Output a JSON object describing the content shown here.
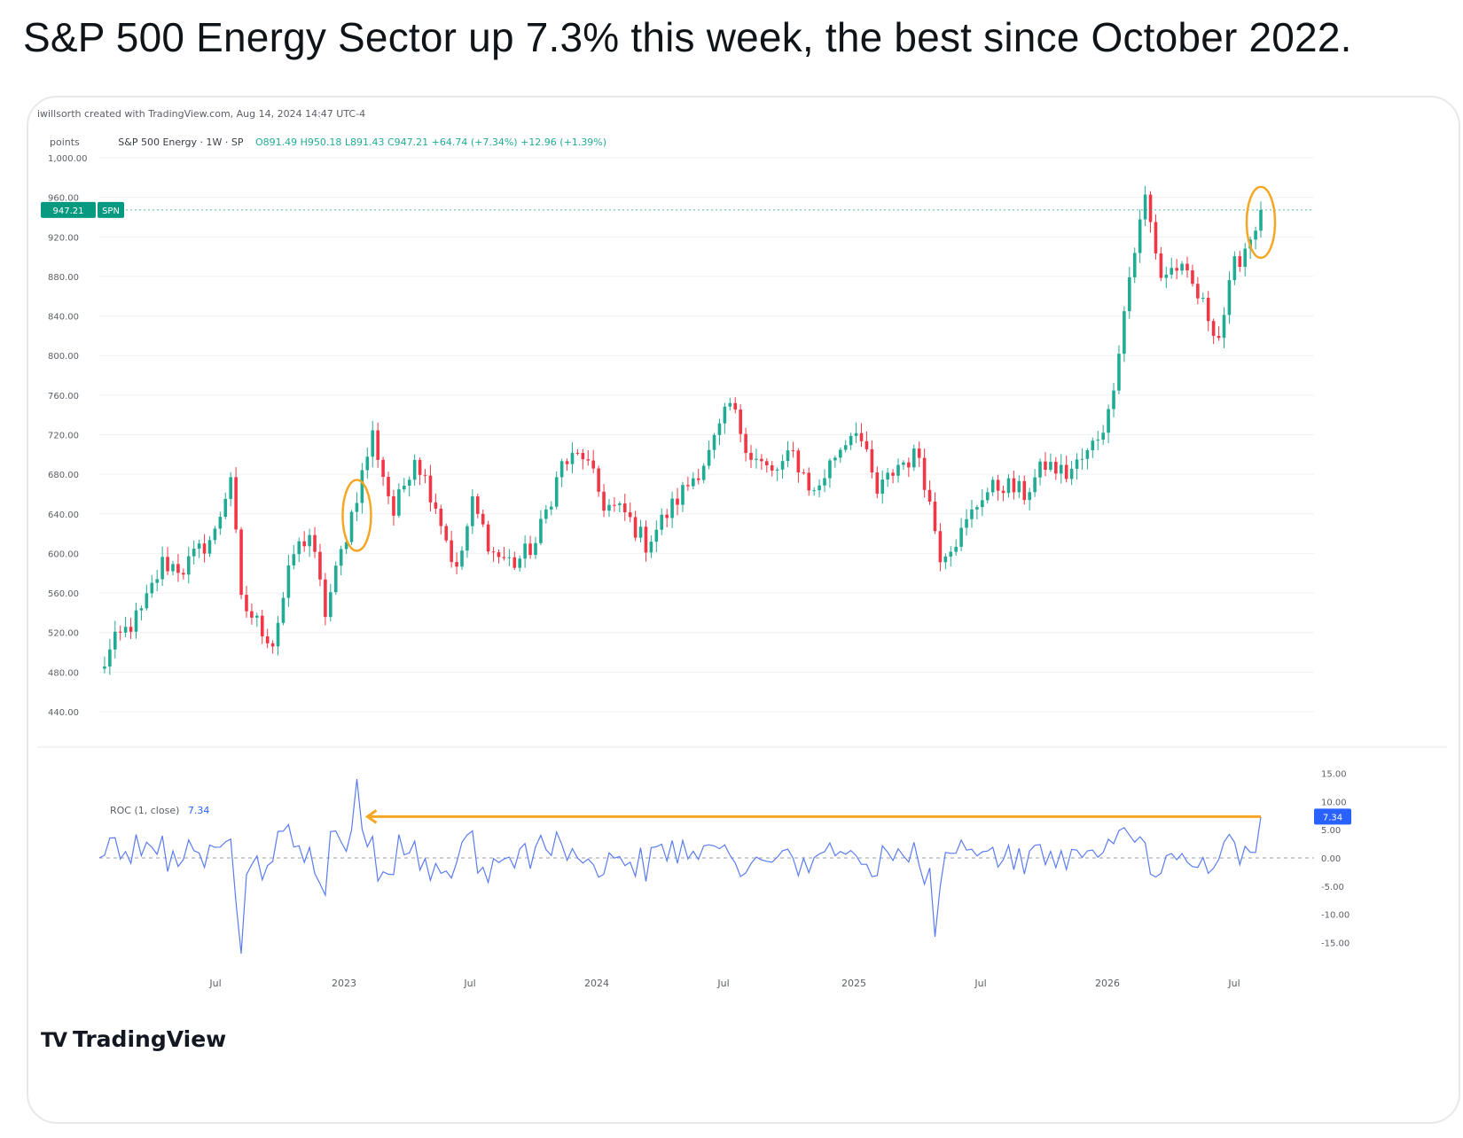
{
  "tweet": {
    "text": "S&P 500 Energy Sector up 7.3% this week, the best since October 2022."
  },
  "card": {
    "meta": "iwillsorth created with TradingView.com, Aug 14, 2024 14:47 UTC-4",
    "unit_label": "points",
    "legend_symbol": "S&P 500 Energy · 1W · SP",
    "legend_ohlc": "O891.49 H950.18 L891.43 C947.21 +64.74 (+7.34%) +12.96 (+1.39%)",
    "roc_label": "ROC (1, close)",
    "roc_value": "7.34",
    "brand": "TradingView",
    "last_price_label": "947.21",
    "last_price_tag": "SPN",
    "roc_badge": "7.34"
  },
  "colors": {
    "up": "#22ab94",
    "down": "#f23645",
    "roc": "#5b7cf0",
    "highlight": "#f5a623",
    "badge": "#089981",
    "roc_badge": "#2962ff"
  },
  "chart_data": [
    {
      "type": "candlestick",
      "title": "S&P 500 Energy",
      "ylabel": "points",
      "ylim": [
        440,
        1000
      ],
      "yticks": [
        "1,000.00",
        "960.00",
        "920.00",
        "880.00",
        "840.00",
        "800.00",
        "760.00",
        "720.00",
        "680.00",
        "640.00",
        "600.00",
        "560.00",
        "520.00",
        "480.00",
        "440.00"
      ],
      "xticks": [
        "Jul",
        "2023",
        "Jul",
        "2024",
        "Jul",
        "2025",
        "Jul",
        "2026",
        "Jul"
      ],
      "anchors": [
        [
          0,
          480
        ],
        [
          3,
          510
        ],
        [
          8,
          540
        ],
        [
          12,
          590
        ],
        [
          16,
          585
        ],
        [
          22,
          620
        ],
        [
          25,
          680
        ],
        [
          27,
          550
        ],
        [
          33,
          510
        ],
        [
          37,
          600
        ],
        [
          40,
          620
        ],
        [
          43,
          540
        ],
        [
          48,
          640
        ],
        [
          52,
          720
        ],
        [
          56,
          640
        ],
        [
          60,
          700
        ],
        [
          64,
          650
        ],
        [
          68,
          580
        ],
        [
          71,
          650
        ],
        [
          75,
          600
        ],
        [
          79,
          590
        ],
        [
          83,
          610
        ],
        [
          88,
          690
        ],
        [
          92,
          700
        ],
        [
          96,
          650
        ],
        [
          100,
          640
        ],
        [
          104,
          610
        ],
        [
          108,
          640
        ],
        [
          112,
          670
        ],
        [
          116,
          700
        ],
        [
          120,
          750
        ],
        [
          124,
          700
        ],
        [
          128,
          680
        ],
        [
          132,
          700
        ],
        [
          136,
          660
        ],
        [
          140,
          700
        ],
        [
          144,
          730
        ],
        [
          148,
          660
        ],
        [
          152,
          690
        ],
        [
          156,
          700
        ],
        [
          160,
          600
        ],
        [
          164,
          620
        ],
        [
          168,
          660
        ],
        [
          172,
          670
        ],
        [
          176,
          660
        ],
        [
          180,
          690
        ],
        [
          184,
          680
        ],
        [
          188,
          700
        ],
        [
          192,
          740
        ],
        [
          196,
          880
        ],
        [
          199,
          960
        ],
        [
          202,
          880
        ],
        [
          205,
          890
        ],
        [
          208,
          870
        ],
        [
          211,
          840
        ],
        [
          213,
          820
        ],
        [
          216,
          890
        ],
        [
          219,
          920
        ],
        [
          221,
          947
        ]
      ],
      "last_close": 947.21,
      "highlights": [
        {
          "label": "Oct 2022 week",
          "index": 49
        },
        {
          "label": "Current week",
          "index": 221
        }
      ]
    },
    {
      "type": "line",
      "title": "ROC (1, close)",
      "ylim": [
        -17,
        17
      ],
      "yticks": [
        "15.00",
        "10.00",
        "5.00",
        "0.00",
        "-5.00",
        "-10.00",
        "-15.00"
      ],
      "last_value": 7.34,
      "extremes": [
        {
          "index": 49,
          "value": 14
        },
        {
          "index": 27,
          "value": -17
        },
        {
          "index": 159,
          "value": -14
        }
      ],
      "reference_line": 7.34
    }
  ]
}
